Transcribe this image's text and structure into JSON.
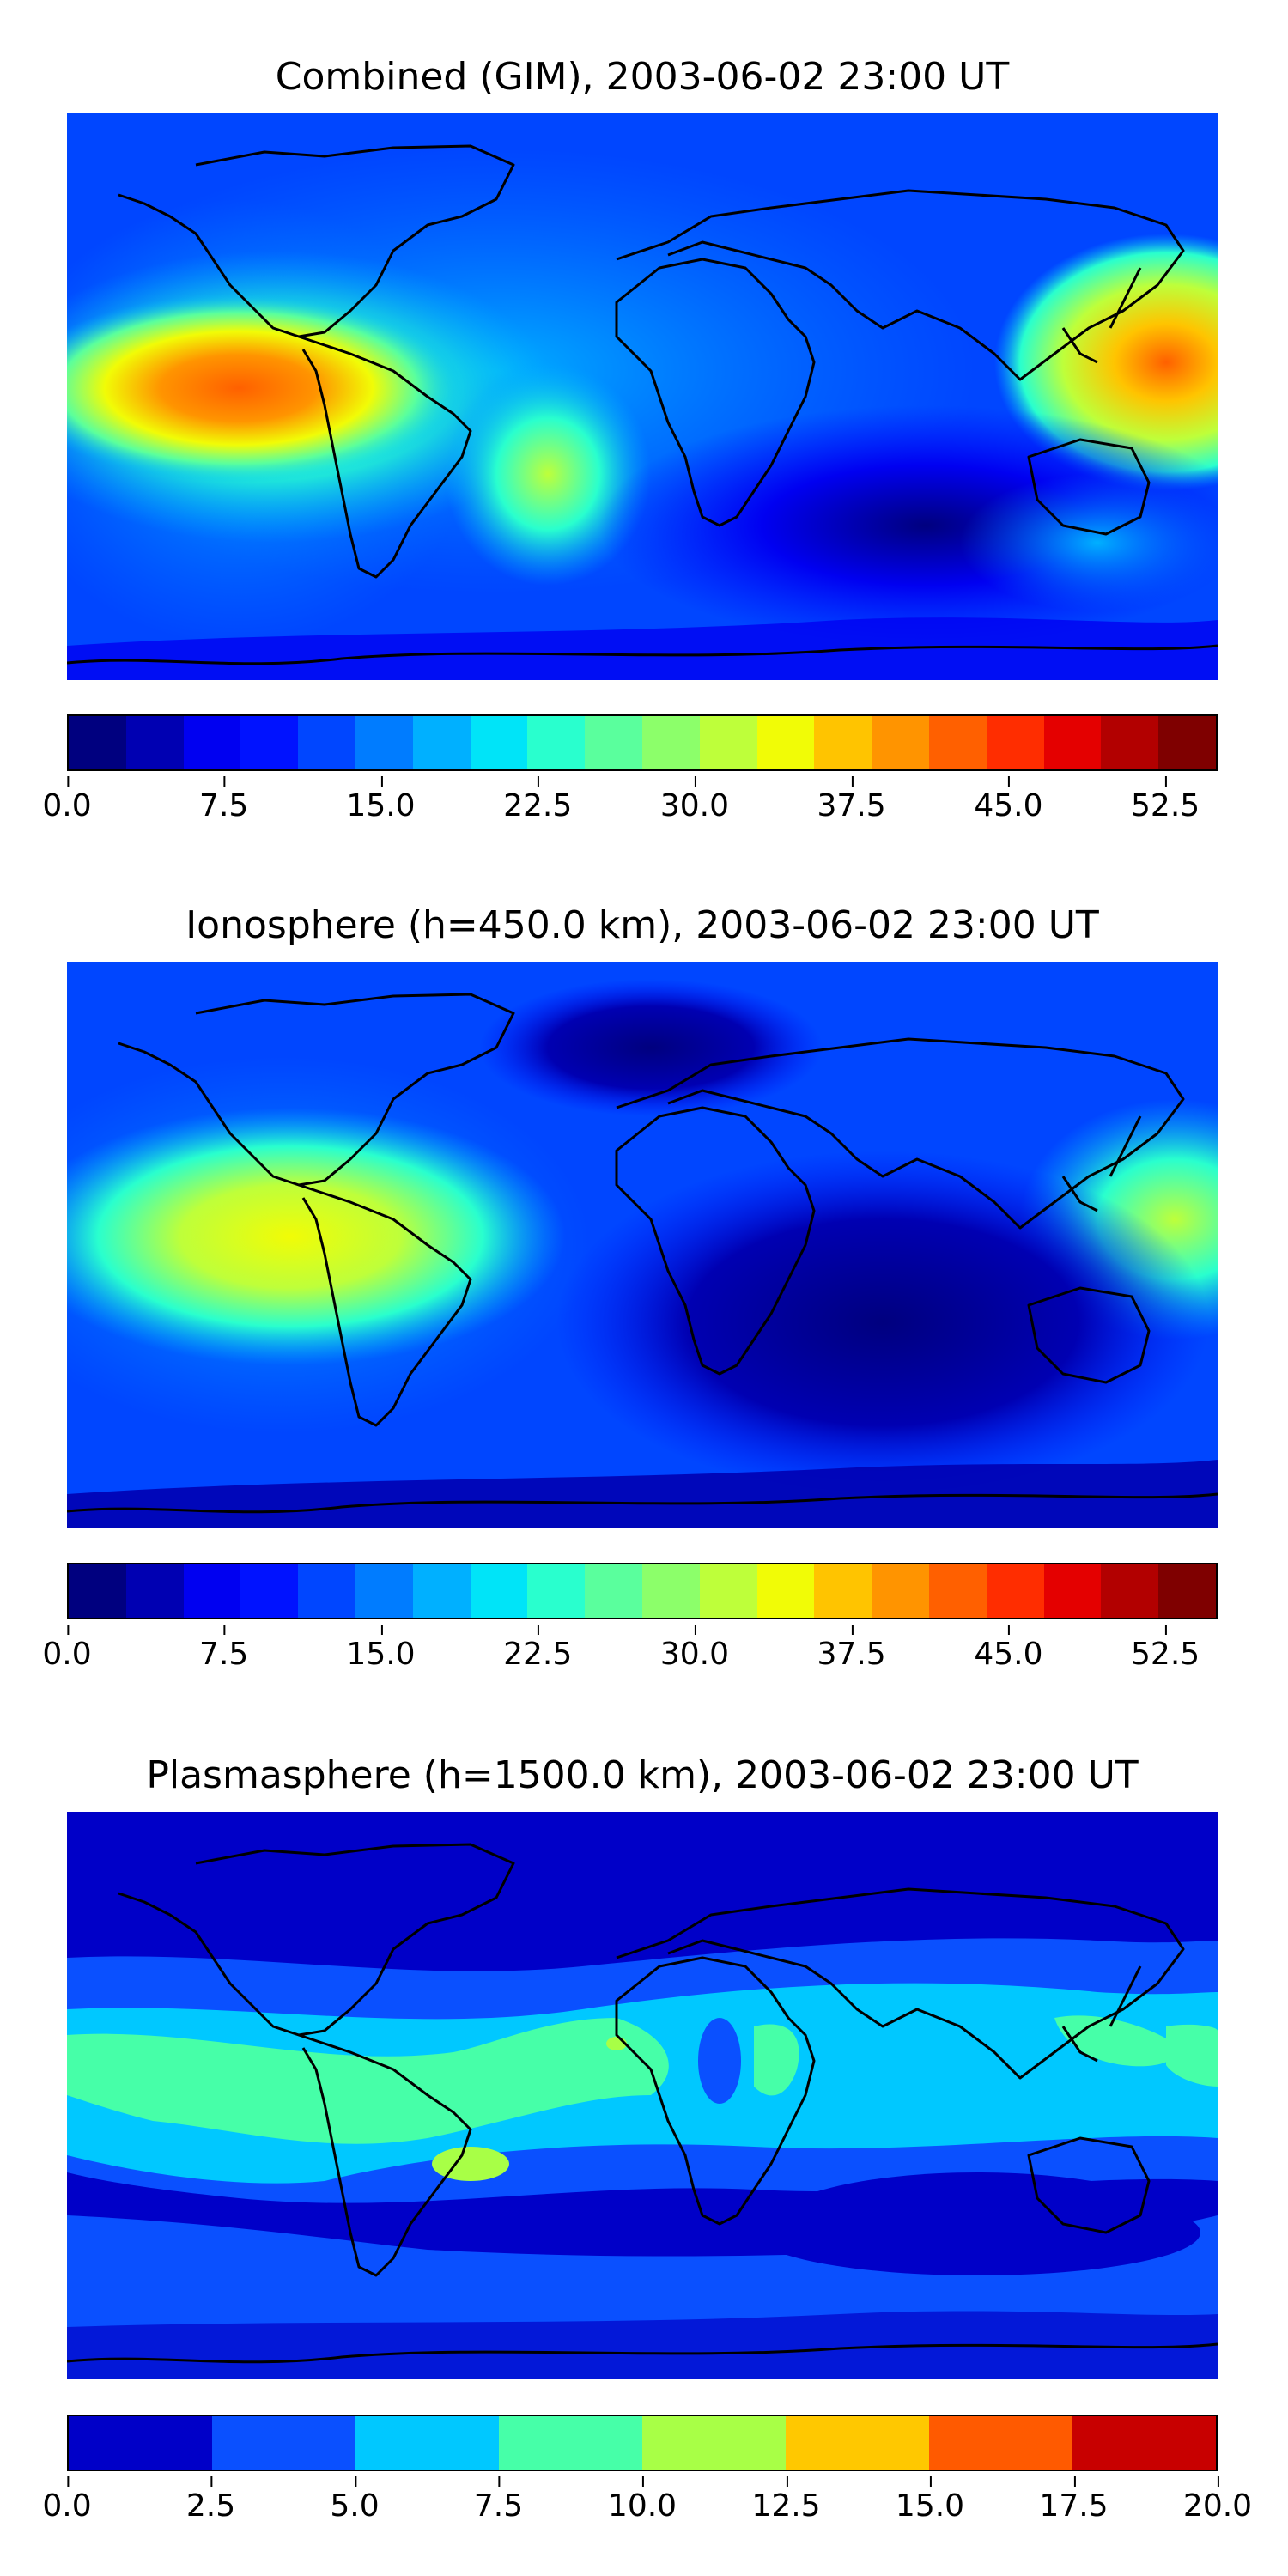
{
  "panels": [
    {
      "title": "Combined (GIM), 2003-06-02 23:00 UT",
      "colorbar": {
        "colors": [
          "#00007f",
          "#0000b2",
          "#0000f1",
          "#0012ff",
          "#0046ff",
          "#007cff",
          "#00b0ff",
          "#00e4f8",
          "#29ffce",
          "#5aff9d",
          "#8cff6a",
          "#beff3a",
          "#f1fc06",
          "#ffc400",
          "#ff9400",
          "#ff6000",
          "#ff2d00",
          "#e40000",
          "#b20000",
          "#7f0000"
        ],
        "ticks": [
          "0.0",
          "7.5",
          "15.0",
          "22.5",
          "30.0",
          "37.5",
          "45.0",
          "52.5"
        ],
        "range": [
          0,
          55
        ]
      }
    },
    {
      "title": "Ionosphere  (h=450.0 km), 2003-06-02 23:00 UT",
      "colorbar": {
        "colors": [
          "#00007f",
          "#0000b2",
          "#0000f1",
          "#0012ff",
          "#0046ff",
          "#007cff",
          "#00b0ff",
          "#00e4f8",
          "#29ffce",
          "#5aff9d",
          "#8cff6a",
          "#beff3a",
          "#f1fc06",
          "#ffc400",
          "#ff9400",
          "#ff6000",
          "#ff2d00",
          "#e40000",
          "#b20000",
          "#7f0000"
        ],
        "ticks": [
          "0.0",
          "7.5",
          "15.0",
          "22.5",
          "30.0",
          "37.5",
          "45.0",
          "52.5"
        ],
        "range": [
          0,
          55
        ]
      }
    },
    {
      "title": "Plasmasphere (h=1500.0 km), 2003-06-02 23:00 UT",
      "colorbar": {
        "colors": [
          "#0000c8",
          "#0a50ff",
          "#00c8ff",
          "#46ffa8",
          "#a8ff46",
          "#ffc800",
          "#ff5a00",
          "#c80000"
        ],
        "ticks": [
          "0.0",
          "2.5",
          "5.0",
          "7.5",
          "10.0",
          "12.5",
          "15.0",
          "17.5",
          "20.0"
        ],
        "range": [
          0,
          20
        ]
      }
    }
  ]
}
